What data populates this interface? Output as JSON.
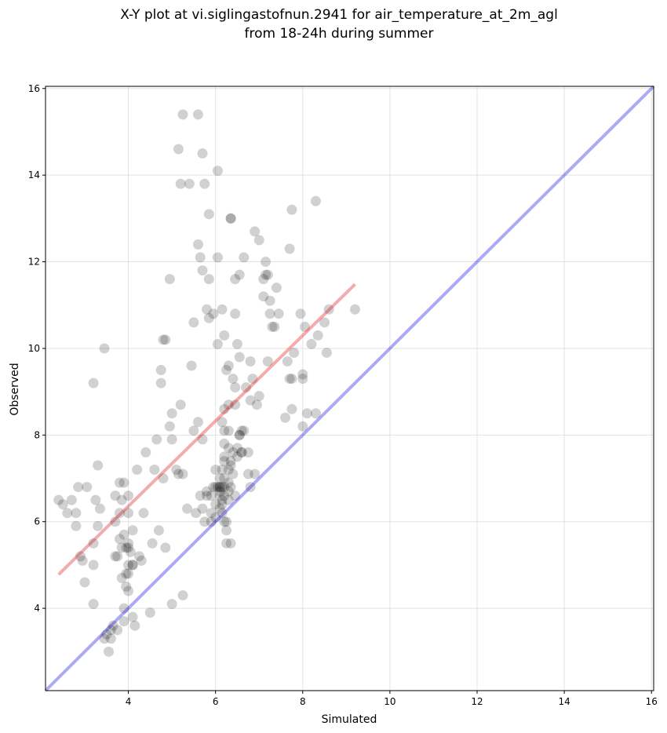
{
  "chart_data": {
    "type": "scatter",
    "title_lines": [
      "X-Y plot at vi.siglingastofnun.2941 for air_temperature_at_2m_agl",
      "from 18-24h during summer"
    ],
    "xlabel": "Simulated",
    "ylabel": "Observed",
    "xlim": [
      2.1,
      16.05
    ],
    "ylim": [
      2.1,
      16.05
    ],
    "xticks": [
      4,
      6,
      8,
      10,
      12,
      14,
      16
    ],
    "yticks": [
      4,
      6,
      8,
      10,
      12,
      14,
      16
    ],
    "grid": true,
    "point_color": "#000000",
    "point_alpha": 0.18,
    "identity_line": {
      "x": [
        2.1,
        16.05
      ],
      "y": [
        2.1,
        16.05
      ],
      "color": "#0000e0"
    },
    "fit_line": {
      "x": [
        2.4,
        9.2
      ],
      "y": [
        4.78,
        11.48
      ],
      "color": "#e00000"
    },
    "points": [
      [
        2.4,
        6.5
      ],
      [
        2.5,
        6.4
      ],
      [
        2.6,
        6.2
      ],
      [
        2.7,
        6.5
      ],
      [
        2.8,
        5.9
      ],
      [
        2.8,
        6.2
      ],
      [
        2.85,
        6.8
      ],
      [
        2.9,
        5.2
      ],
      [
        2.95,
        5.1
      ],
      [
        3.0,
        4.6
      ],
      [
        3.05,
        6.8
      ],
      [
        3.2,
        5.5
      ],
      [
        3.2,
        5.0
      ],
      [
        3.2,
        4.1
      ],
      [
        3.2,
        9.2
      ],
      [
        3.25,
        6.5
      ],
      [
        3.3,
        7.3
      ],
      [
        3.3,
        5.9
      ],
      [
        3.35,
        6.3
      ],
      [
        3.45,
        10.0
      ],
      [
        3.45,
        3.3
      ],
      [
        3.5,
        3.4
      ],
      [
        3.55,
        3.0
      ],
      [
        3.6,
        3.5
      ],
      [
        3.6,
        3.3
      ],
      [
        3.65,
        3.6
      ],
      [
        3.7,
        6.0
      ],
      [
        3.7,
        6.6
      ],
      [
        3.7,
        5.2
      ],
      [
        3.75,
        3.5
      ],
      [
        3.75,
        5.2
      ],
      [
        3.8,
        6.2
      ],
      [
        3.8,
        6.9
      ],
      [
        3.8,
        5.6
      ],
      [
        3.85,
        5.4
      ],
      [
        3.85,
        4.7
      ],
      [
        3.85,
        6.5
      ],
      [
        3.9,
        5.7
      ],
      [
        3.9,
        4.0
      ],
      [
        3.9,
        3.7
      ],
      [
        3.9,
        6.9
      ],
      [
        3.95,
        5.4
      ],
      [
        3.95,
        4.5
      ],
      [
        3.95,
        4.8
      ],
      [
        4.0,
        6.6
      ],
      [
        4.0,
        6.2
      ],
      [
        4.0,
        4.8
      ],
      [
        4.0,
        5.0
      ],
      [
        4.0,
        4.4
      ],
      [
        4.0,
        5.5
      ],
      [
        4.0,
        5.4
      ],
      [
        4.05,
        5.3
      ],
      [
        4.1,
        5.0
      ],
      [
        4.1,
        5.8
      ],
      [
        4.1,
        3.8
      ],
      [
        4.1,
        5.0
      ],
      [
        4.15,
        3.6
      ],
      [
        4.2,
        7.2
      ],
      [
        4.25,
        5.2
      ],
      [
        4.3,
        5.1
      ],
      [
        4.35,
        6.2
      ],
      [
        4.4,
        7.6
      ],
      [
        4.5,
        3.9
      ],
      [
        4.55,
        5.5
      ],
      [
        4.6,
        7.2
      ],
      [
        4.65,
        7.9
      ],
      [
        4.7,
        5.8
      ],
      [
        4.75,
        9.2
      ],
      [
        4.75,
        9.5
      ],
      [
        4.8,
        10.2
      ],
      [
        4.8,
        7.0
      ],
      [
        4.85,
        10.2
      ],
      [
        4.85,
        5.4
      ],
      [
        4.95,
        11.6
      ],
      [
        4.95,
        8.2
      ],
      [
        5.0,
        4.1
      ],
      [
        5.0,
        7.9
      ],
      [
        5.0,
        8.5
      ],
      [
        5.1,
        7.2
      ],
      [
        5.15,
        7.1
      ],
      [
        5.15,
        14.6
      ],
      [
        5.2,
        8.7
      ],
      [
        5.2,
        13.8
      ],
      [
        5.25,
        7.1
      ],
      [
        5.25,
        4.3
      ],
      [
        5.25,
        15.4
      ],
      [
        5.35,
        6.3
      ],
      [
        5.4,
        13.8
      ],
      [
        5.45,
        9.6
      ],
      [
        5.5,
        10.6
      ],
      [
        5.5,
        8.1
      ],
      [
        5.55,
        6.2
      ],
      [
        5.6,
        8.3
      ],
      [
        5.6,
        12.4
      ],
      [
        5.6,
        15.4
      ],
      [
        5.65,
        12.1
      ],
      [
        5.65,
        6.6
      ],
      [
        5.7,
        14.5
      ],
      [
        5.7,
        7.9
      ],
      [
        5.7,
        11.8
      ],
      [
        5.7,
        6.3
      ],
      [
        5.75,
        13.8
      ],
      [
        5.75,
        6.0
      ],
      [
        5.8,
        10.9
      ],
      [
        5.8,
        6.6
      ],
      [
        5.8,
        6.7
      ],
      [
        5.85,
        13.1
      ],
      [
        5.85,
        11.6
      ],
      [
        5.85,
        10.7
      ],
      [
        5.9,
        6.6
      ],
      [
        5.9,
        6.0
      ],
      [
        5.9,
        6.2
      ],
      [
        5.95,
        6.8
      ],
      [
        5.95,
        10.8
      ],
      [
        6.0,
        6.8
      ],
      [
        6.0,
        6.1
      ],
      [
        6.0,
        7.2
      ],
      [
        6.0,
        6.4
      ],
      [
        6.05,
        12.1
      ],
      [
        6.05,
        10.1
      ],
      [
        6.05,
        6.8
      ],
      [
        6.05,
        14.1
      ],
      [
        6.1,
        6.8
      ],
      [
        6.1,
        6.7
      ],
      [
        6.1,
        7.0
      ],
      [
        6.1,
        6.6
      ],
      [
        6.1,
        6.3
      ],
      [
        6.1,
        6.8
      ],
      [
        6.15,
        7.2
      ],
      [
        6.15,
        6.5
      ],
      [
        6.15,
        6.4
      ],
      [
        6.15,
        6.8
      ],
      [
        6.15,
        10.9
      ],
      [
        6.15,
        8.3
      ],
      [
        6.15,
        6.2
      ],
      [
        6.2,
        7.5
      ],
      [
        6.2,
        7.4
      ],
      [
        6.2,
        7.0
      ],
      [
        6.2,
        6.8
      ],
      [
        6.2,
        6.6
      ],
      [
        6.2,
        6.0
      ],
      [
        6.2,
        7.8
      ],
      [
        6.2,
        10.3
      ],
      [
        6.2,
        8.6
      ],
      [
        6.2,
        8.1
      ],
      [
        6.25,
        9.5
      ],
      [
        6.25,
        6.0
      ],
      [
        6.25,
        5.8
      ],
      [
        6.25,
        5.5
      ],
      [
        6.3,
        9.6
      ],
      [
        6.3,
        8.1
      ],
      [
        6.3,
        7.7
      ],
      [
        6.3,
        7.2
      ],
      [
        6.3,
        6.9
      ],
      [
        6.3,
        6.7
      ],
      [
        6.3,
        6.5
      ],
      [
        6.3,
        8.7
      ],
      [
        6.35,
        7.4
      ],
      [
        6.35,
        7.3
      ],
      [
        6.35,
        6.8
      ],
      [
        6.35,
        5.5
      ],
      [
        6.35,
        13.0
      ],
      [
        6.35,
        13.0
      ],
      [
        6.4,
        7.1
      ],
      [
        6.4,
        7.6
      ],
      [
        6.4,
        9.3
      ],
      [
        6.45,
        9.1
      ],
      [
        6.45,
        8.7
      ],
      [
        6.45,
        6.6
      ],
      [
        6.45,
        11.6
      ],
      [
        6.45,
        10.8
      ],
      [
        6.5,
        10.1
      ],
      [
        6.5,
        7.7
      ],
      [
        6.5,
        7.5
      ],
      [
        6.55,
        8.0
      ],
      [
        6.55,
        8.0
      ],
      [
        6.55,
        9.8
      ],
      [
        6.55,
        11.7
      ],
      [
        6.6,
        7.6
      ],
      [
        6.6,
        7.6
      ],
      [
        6.6,
        8.1
      ],
      [
        6.65,
        8.1
      ],
      [
        6.65,
        12.1
      ],
      [
        6.7,
        9.1
      ],
      [
        6.75,
        7.1
      ],
      [
        6.75,
        7.6
      ],
      [
        6.8,
        6.8
      ],
      [
        6.8,
        8.8
      ],
      [
        6.8,
        9.7
      ],
      [
        6.85,
        9.3
      ],
      [
        6.9,
        12.7
      ],
      [
        6.9,
        7.1
      ],
      [
        6.95,
        8.7
      ],
      [
        7.0,
        8.9
      ],
      [
        7.0,
        12.5
      ],
      [
        7.1,
        11.2
      ],
      [
        7.1,
        11.6
      ],
      [
        7.15,
        12.0
      ],
      [
        7.15,
        11.7
      ],
      [
        7.2,
        11.7
      ],
      [
        7.2,
        9.7
      ],
      [
        7.25,
        11.1
      ],
      [
        7.25,
        10.8
      ],
      [
        7.3,
        10.5
      ],
      [
        7.35,
        10.5
      ],
      [
        7.4,
        11.4
      ],
      [
        7.45,
        10.8
      ],
      [
        7.6,
        8.4
      ],
      [
        7.65,
        9.7
      ],
      [
        7.7,
        9.3
      ],
      [
        7.7,
        12.3
      ],
      [
        7.75,
        8.6
      ],
      [
        7.75,
        13.2
      ],
      [
        7.75,
        9.3
      ],
      [
        7.8,
        9.9
      ],
      [
        7.95,
        10.8
      ],
      [
        8.0,
        9.3
      ],
      [
        8.0,
        8.2
      ],
      [
        8.0,
        9.4
      ],
      [
        8.05,
        10.5
      ],
      [
        8.1,
        8.5
      ],
      [
        8.2,
        10.1
      ],
      [
        8.3,
        13.4
      ],
      [
        8.3,
        8.5
      ],
      [
        8.35,
        10.3
      ],
      [
        8.5,
        10.6
      ],
      [
        8.55,
        9.9
      ],
      [
        8.6,
        10.9
      ],
      [
        9.2,
        10.9
      ]
    ]
  }
}
